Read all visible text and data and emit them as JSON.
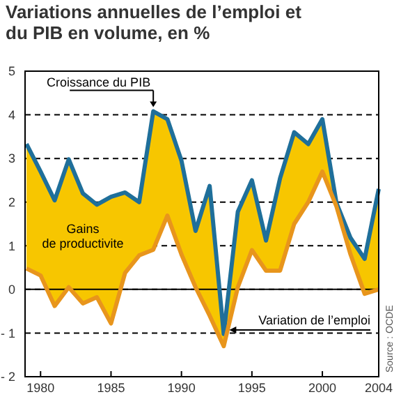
{
  "chart_data": {
    "type": "line",
    "title": "Variations annuelles de l’emploi et du PIB en volume, en %",
    "x": [
      1979,
      1980,
      1981,
      1982,
      1983,
      1984,
      1985,
      1986,
      1987,
      1988,
      1989,
      1990,
      1991,
      1992,
      1993,
      1994,
      1995,
      1996,
      1997,
      1998,
      1999,
      2000,
      2001,
      2002,
      2003,
      2004
    ],
    "series": [
      {
        "name": "Croissance du PIB",
        "color": "#1f6f9a",
        "values": [
          3.33,
          2.7,
          2.04,
          2.98,
          2.2,
          1.94,
          2.12,
          2.22,
          2.0,
          4.08,
          3.9,
          2.95,
          1.34,
          2.37,
          -1.02,
          1.78,
          2.5,
          1.12,
          2.55,
          3.6,
          3.33,
          3.9,
          1.98,
          1.18,
          0.7,
          2.3
        ],
        "lower": [
          0.48,
          0.32,
          -0.38,
          0.05,
          -0.32,
          -0.18,
          -0.78,
          0.38,
          0.78,
          0.91,
          1.69,
          0.8,
          0.05,
          -0.6,
          -1.3,
          0.05,
          0.9,
          0.43,
          0.43,
          1.5,
          2.0,
          2.7,
          1.9,
          0.8,
          -0.1,
          0.0
        ],
        "upper": [
          3.33,
          2.7,
          2.04,
          2.98,
          2.2,
          1.94,
          2.12,
          2.22,
          2.0,
          4.08,
          3.9,
          2.95,
          1.34,
          2.37,
          -1.02,
          1.78,
          2.5,
          1.12,
          2.55,
          3.6,
          3.33,
          3.9,
          1.98,
          1.18,
          0.7,
          2.3
        ]
      },
      {
        "name": "Variation de l’emploi",
        "color": "#e8951c",
        "values": [
          0.48,
          0.32,
          -0.38,
          0.05,
          -0.32,
          -0.18,
          -0.78,
          0.38,
          0.78,
          0.91,
          1.69,
          0.8,
          0.05,
          -0.6,
          -1.3,
          0.05,
          0.9,
          0.43,
          0.43,
          1.5,
          2.0,
          2.7,
          1.9,
          0.8,
          -0.1,
          0.0
        ]
      }
    ],
    "xlim": [
      1978.9,
      2004
    ],
    "xticks": [
      1980,
      1985,
      1990,
      1995,
      2000,
      2004
    ],
    "ylim": [
      -2,
      5
    ],
    "yticks": [
      {
        "value": -2,
        "label": "- 2"
      },
      {
        "value": -1,
        "label": "- 1"
      },
      0,
      1,
      2,
      3,
      4,
      5
    ],
    "grid": "y",
    "line_style": "solid",
    "ref_lines": [
      {
        "axis": "y",
        "value": 0
      }
    ],
    "annotations": [
      "Gains de productivite",
      "Source : OCDE"
    ]
  }
}
